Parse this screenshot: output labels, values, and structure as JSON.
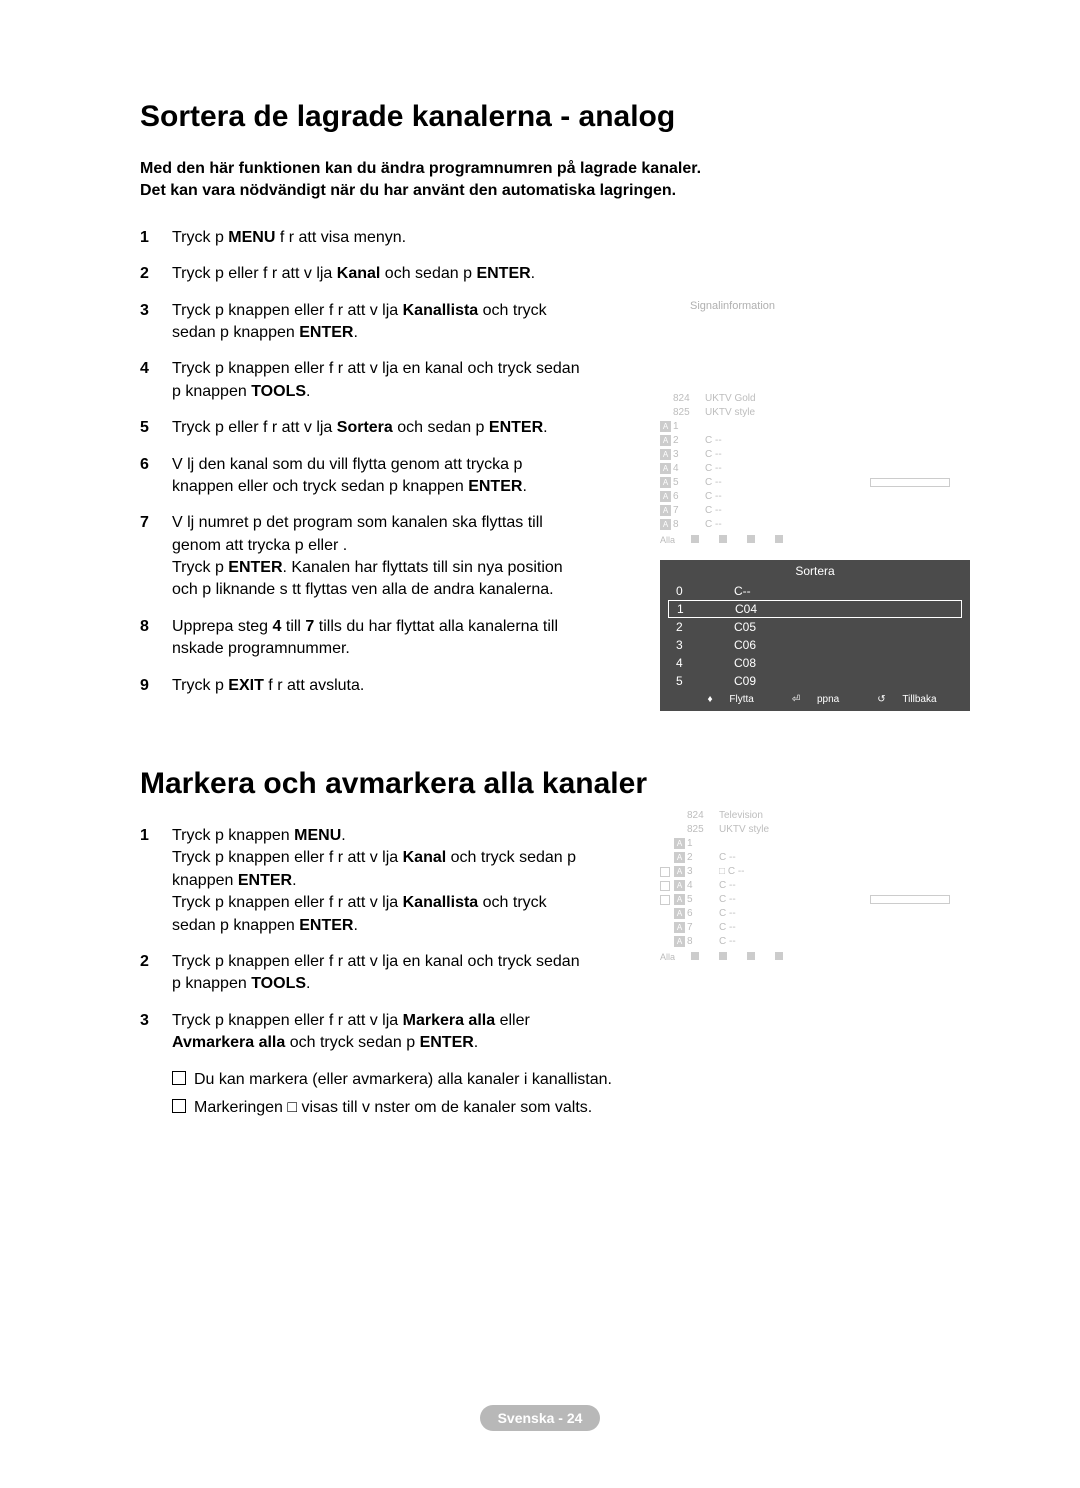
{
  "title1": "Sortera de lagrade kanalerna - analog",
  "intro1_l1": "Med den här funktionen kan du ändra programnumren på lagrade kanaler.",
  "intro1_l2": "Det kan vara nödvändigt när du har använt den automatiska lagringen.",
  "steps1": [
    {
      "n": "1",
      "t": "Tryck p  <b>MENU</b> f r att visa menyn."
    },
    {
      "n": "2",
      "t": "Tryck p   eller  f r att v lja  <b>Kanal</b> och sedan p  <b>ENTER</b>."
    },
    {
      "n": "3",
      "t": "Tryck p  knappen   eller   f r att v lja <b>Kanallista</b> och tryck sedan p  knappen <b>ENTER</b>."
    },
    {
      "n": "4",
      "t": "Tryck p  knappen  eller  f r att v lja en kanal och tryck sedan p  knappen <b>TOOLS</b>."
    },
    {
      "n": "5",
      "t": "Tryck p   eller  f r att v lja  <b>Sortera</b> och sedan p  <b>ENTER</b>."
    },
    {
      "n": "6",
      "t": "V lj den kanal som du vill flytta genom att trycka p  knappen  eller  och tryck sedan p  knappen  <b>ENTER</b>."
    },
    {
      "n": "7",
      "t": "V lj numret p  det program som kanalen ska flyttas till genom att trycka p   eller .<br>Tryck p  <b>ENTER</b>. Kanalen har flyttats till sin nya position och p  liknande s tt flyttas  ven alla de andra kanalerna."
    },
    {
      "n": "8",
      "t": "Upprepa steg <b>4</b> till <b>7</b> tills du har flyttat alla kanalerna till  nskade programnummer."
    },
    {
      "n": "9",
      "t": "Tryck p  <b>EXIT</b> f r att avsluta."
    }
  ],
  "osd_label": "Signalinformation",
  "chrows1": [
    {
      "badge": "",
      "num": "824",
      "name": "UKTV Gold",
      "bar": false
    },
    {
      "badge": "",
      "num": "825",
      "name": "UKTV style",
      "bar": false
    },
    {
      "badge": "A",
      "num": "1",
      "name": "",
      "bar": false
    },
    {
      "badge": "A",
      "num": "2",
      "name": "C --",
      "bar": false
    },
    {
      "badge": "A",
      "num": "3",
      "name": "C --",
      "bar": false
    },
    {
      "badge": "A",
      "num": "4",
      "name": "C --",
      "bar": false
    },
    {
      "badge": "A",
      "num": "5",
      "name": "C --",
      "bar": true
    },
    {
      "badge": "A",
      "num": "6",
      "name": "C --",
      "bar": false
    },
    {
      "badge": "A",
      "num": "7",
      "name": "C --",
      "bar": false
    },
    {
      "badge": "A",
      "num": "8",
      "name": "C --",
      "bar": false
    }
  ],
  "chfooter_all": "Alla",
  "sortera": {
    "title": "Sortera",
    "rows": [
      {
        "n": "0",
        "v": "C--",
        "sel": false
      },
      {
        "n": "1",
        "v": "C04",
        "sel": true
      },
      {
        "n": "2",
        "v": "C05",
        "sel": false
      },
      {
        "n": "3",
        "v": "C06",
        "sel": false
      },
      {
        "n": "4",
        "v": "C08",
        "sel": false
      },
      {
        "n": "5",
        "v": "C09",
        "sel": false
      }
    ],
    "f1": "Flytta",
    "f2": "ppna",
    "f3": "Tillbaka"
  },
  "title2": "Markera och avmarkera alla kanaler",
  "steps2": [
    {
      "n": "1",
      "t": "Tryck p  knappen <b>MENU</b>.<br>Tryck p  knappen  eller  f r att v lja  <b>Kanal</b> och tryck sedan p  knappen <b>ENTER</b>.<br>Tryck p  knappen  eller  f r att v lja  <b>Kanallista</b> och tryck sedan p  knappen <b>ENTER</b>."
    },
    {
      "n": "2",
      "t": "Tryck p  knappen  eller  f r att v lja en kanal och tryck sedan p  knappen <b>TOOLS</b>."
    },
    {
      "n": "3",
      "t": "Tryck p  knappen  eller  f r att v lja  <b>Markera alla</b> eller <b>Avmarkera alla</b> och tryck sedan p  <b>ENTER</b>."
    }
  ],
  "note1": "Du kan markera (eller avmarkera) alla kanaler i kanallistan.",
  "note2": "Markeringen □ visas till v nster om de kanaler som valts.",
  "chrows2": [
    {
      "chk": "",
      "badge": "",
      "num": "824",
      "name": "Television",
      "bar": false
    },
    {
      "chk": "",
      "badge": "",
      "num": "825",
      "name": "UKTV style",
      "bar": false
    },
    {
      "chk": "",
      "badge": "A",
      "num": "1",
      "name": "",
      "bar": false
    },
    {
      "chk": "",
      "badge": "A",
      "num": "2",
      "name": "C --",
      "bar": false
    },
    {
      "chk": "open",
      "badge": "A",
      "num": "3",
      "name": "□ C --",
      "bar": false
    },
    {
      "chk": "open",
      "badge": "A",
      "num": "4",
      "name": "C --",
      "bar": false
    },
    {
      "chk": "open",
      "badge": "A",
      "num": "5",
      "name": "C --",
      "bar": true
    },
    {
      "chk": "",
      "badge": "A",
      "num": "6",
      "name": "C --",
      "bar": false
    },
    {
      "chk": "",
      "badge": "A",
      "num": "7",
      "name": "C --",
      "bar": false
    },
    {
      "chk": "",
      "badge": "A",
      "num": "8",
      "name": "C --",
      "bar": false
    }
  ],
  "footer": "Svenska - 24"
}
